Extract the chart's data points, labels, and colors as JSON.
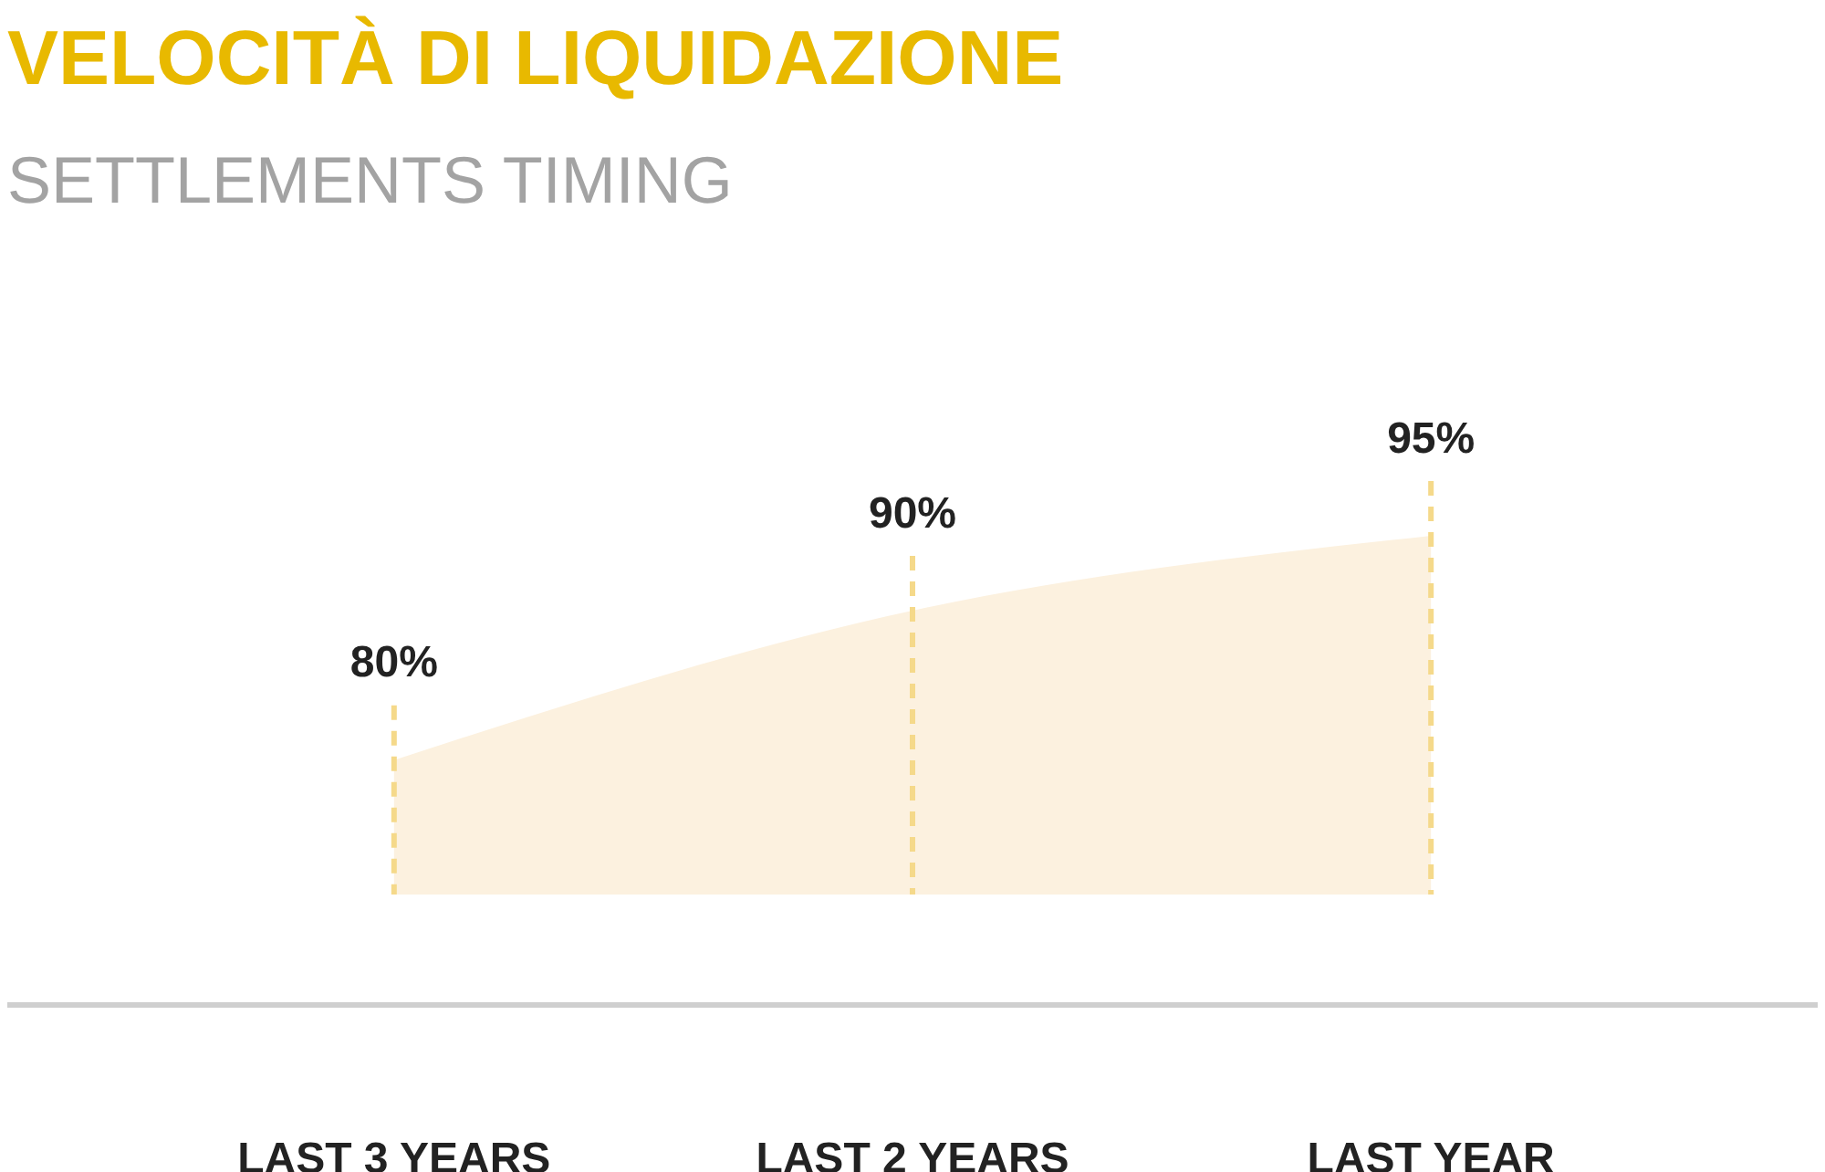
{
  "chart_data": {
    "type": "area",
    "title": "VELOCITÀ DI LIQUIDAZIONE",
    "subtitle": "SETTLEMENTS TIMING",
    "categories": [
      "LAST 3 YEARS",
      "LAST 2 YEARS",
      "LAST YEAR"
    ],
    "values": [
      80,
      90,
      95
    ],
    "value_labels": [
      "80%",
      "90%",
      "95%"
    ],
    "color": "#fcf1df"
  }
}
